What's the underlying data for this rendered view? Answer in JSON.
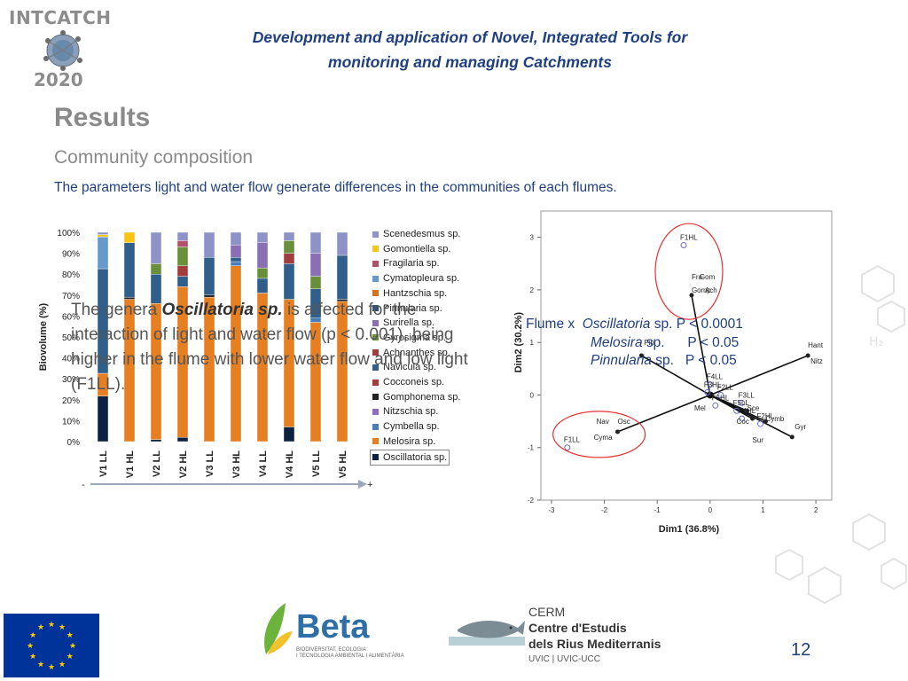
{
  "header": {
    "logo_top": "INTCATCH",
    "logo_bottom": "2020",
    "title_line1": "Development and application of Novel, Integrated Tools for",
    "title_line2": "monitoring and managing Catchments"
  },
  "section": {
    "title": "Results",
    "subtitle": "Community composition",
    "description": "The parameters light and water flow generate differences in the communities of each flumes."
  },
  "overlay": {
    "pre": "The genera ",
    "genus": "Oscillatoria sp.",
    "post": " is affected for the interaction of light and water flow (p < 0.001), being higher in the flume with lower water flow and low light (F1LL)."
  },
  "flume_stats": [
    {
      "label_prefix": "Flume x",
      "genus": "Oscillatoria",
      "suffix": "sp. P < 0.0001"
    },
    {
      "label_prefix": "",
      "genus": "Melosira",
      "suffix": "sp.      P < 0.05"
    },
    {
      "label_prefix": "",
      "genus": "Pinnularia",
      "suffix": "sp.   P < 0.05"
    }
  ],
  "footer": {
    "beta_label": "Beta",
    "beta_sub1": "BIODIVERSITAT, ECOLOGIA",
    "beta_sub2": "I TECNOLOGIA AMBIENTAL I ALIMENTÀRIA",
    "cerm1": "CERM",
    "cerm2": "Centre d'Estudis",
    "cerm3": "dels Rius Mediterranis",
    "cerm4": "UVIC | UVIC-UCC",
    "page": "12"
  },
  "chart_data": [
    {
      "type": "bar",
      "stacked": "percent",
      "ylabel": "Biovolume (%)",
      "yticks": [
        "0%",
        "10%",
        "20%",
        "30%",
        "40%",
        "50%",
        "60%",
        "70%",
        "80%",
        "90%",
        "100%"
      ],
      "ylim": [
        0,
        100
      ],
      "categories": [
        "V1 LL",
        "V1 HL",
        "V2 LL",
        "V2 HL",
        "V3 LL",
        "V3 HL",
        "V4 LL",
        "V4 HL",
        "V5 LL",
        "V5 HL"
      ],
      "axis_minus": "-",
      "axis_plus": "+",
      "series": [
        {
          "name": "Oscillatoria sp.",
          "color": "#0d2240",
          "values": [
            20,
            0,
            1,
            2,
            0,
            0,
            0,
            7,
            0,
            0
          ]
        },
        {
          "name": "Melosira sp.",
          "color": "#e67e22",
          "values": [
            10,
            68,
            65,
            72,
            69,
            84,
            71,
            61,
            57,
            67
          ]
        },
        {
          "name": "Cymbella sp.",
          "color": "#4a7ebb",
          "values": [
            0,
            0,
            0,
            0,
            0,
            2,
            0,
            0,
            2,
            0
          ]
        },
        {
          "name": "Nitzschia sp.",
          "color": "#8e6fbf",
          "values": [
            0,
            0,
            0,
            0,
            0,
            0,
            0,
            0,
            0,
            0
          ]
        },
        {
          "name": "Gomphonema sp.",
          "color": "#222222",
          "values": [
            0,
            1,
            0,
            0,
            1,
            0,
            0,
            0,
            0,
            1
          ]
        },
        {
          "name": "Cocconeis sp.",
          "color": "#a33c3c",
          "values": [
            0,
            0,
            0,
            0,
            0,
            0,
            0,
            0,
            0,
            0
          ]
        },
        {
          "name": "Navicula sp.",
          "color": "#2f5f8a",
          "values": [
            46,
            26,
            14,
            5,
            18,
            2,
            7,
            17,
            14,
            21
          ]
        },
        {
          "name": "Achnanthes sp.",
          "color": "#a33c3c",
          "values": [
            0,
            0,
            0,
            5,
            0,
            0,
            0,
            5,
            0,
            0
          ]
        },
        {
          "name": "Gyrosigma sp.",
          "color": "#6a8f3a",
          "values": [
            0,
            0,
            5,
            9,
            0,
            0,
            5,
            6,
            6,
            0
          ]
        },
        {
          "name": "Surirella sp.",
          "color": "#8a6fb5",
          "values": [
            0,
            0,
            0,
            0,
            0,
            6,
            12,
            0,
            11,
            0
          ]
        },
        {
          "name": "Pinnularia sp.",
          "color": "#2f4f7f",
          "values": [
            0,
            0,
            0,
            0,
            0,
            0,
            0,
            0,
            0,
            0
          ]
        },
        {
          "name": "Hantzschia sp.",
          "color": "#d4731d",
          "values": [
            0,
            0,
            0,
            0,
            0,
            0,
            0,
            0,
            0,
            0
          ]
        },
        {
          "name": "Cymatopleura sp.",
          "color": "#6699cc",
          "values": [
            14,
            0,
            0,
            0,
            0,
            0,
            0,
            0,
            0,
            0
          ]
        },
        {
          "name": "Fragilaria sp.",
          "color": "#b0506a",
          "values": [
            0,
            0,
            0,
            3,
            0,
            0,
            0,
            0,
            0,
            0
          ]
        },
        {
          "name": "Gomontiella sp.",
          "color": "#f5c518",
          "values": [
            1,
            5,
            0,
            0,
            0,
            0,
            0,
            0,
            0,
            0
          ]
        },
        {
          "name": "Scenedesmus sp.",
          "color": "#8d93c6",
          "values": [
            1,
            0,
            15,
            4,
            12,
            6,
            5,
            4,
            10,
            11
          ]
        }
      ]
    },
    {
      "type": "scatter",
      "subtype": "biplot",
      "xlabel": "Dim1 (36.8%)",
      "ylabel": "Dim2 (30.2%)",
      "xlim": [
        -3.2,
        2.3
      ],
      "ylim": [
        -2,
        3.5
      ],
      "xticks": [
        -3,
        -2,
        -1,
        0,
        1,
        2
      ],
      "yticks": [
        -2,
        -1,
        0,
        1,
        2,
        3
      ],
      "sites": [
        {
          "label": "F1HL",
          "x": -0.5,
          "y": 2.85
        },
        {
          "label": "F1LL",
          "x": -2.7,
          "y": -1.0
        },
        {
          "label": "F4LL",
          "x": 0,
          "y": 0.2
        },
        {
          "label": "F3HL",
          "x": -0.05,
          "y": 0.05
        },
        {
          "label": "F2LL",
          "x": 0.2,
          "y": 0
        },
        {
          "label": "F5HL",
          "x": 0.1,
          "y": -0.2
        },
        {
          "label": "F3LL",
          "x": 0.6,
          "y": -0.15
        },
        {
          "label": "F5LL",
          "x": 0.5,
          "y": -0.3
        },
        {
          "label": "F4HL",
          "x": 0.6,
          "y": -0.45
        },
        {
          "label": "F2HL",
          "x": 0.95,
          "y": -0.55
        }
      ],
      "species": [
        {
          "label": "Gomp",
          "x": -0.35,
          "y": 1.95
        },
        {
          "label": "Fra",
          "x": -0.35,
          "y": 2.2
        },
        {
          "label": "Gom",
          "x": -0.2,
          "y": 2.2
        },
        {
          "label": "Ach",
          "x": -0.1,
          "y": 1.95
        },
        {
          "label": "Pin",
          "x": -1.25,
          "y": 0.95
        },
        {
          "label": "Mel",
          "x": -0.3,
          "y": -0.3
        },
        {
          "label": "Hant",
          "x": 1.85,
          "y": 0.9
        },
        {
          "label": "Nitz",
          "x": 1.9,
          "y": 0.6
        },
        {
          "label": "Sce",
          "x": 0.7,
          "y": -0.3
        },
        {
          "label": "Cymb",
          "x": 1.05,
          "y": -0.5
        },
        {
          "label": "Coc",
          "x": 0.5,
          "y": -0.55
        },
        {
          "label": "Gyr",
          "x": 1.6,
          "y": -0.65
        },
        {
          "label": "Sur",
          "x": 0.8,
          "y": -0.9
        },
        {
          "label": "Nav",
          "x": -2.15,
          "y": -0.55
        },
        {
          "label": "Osc",
          "x": -1.75,
          "y": -0.55
        },
        {
          "label": "Cyma",
          "x": -2.2,
          "y": -0.85
        }
      ],
      "vectors": [
        {
          "label": "Gomp",
          "x": -0.35,
          "y": 1.9
        },
        {
          "label": "Pin",
          "x": -1.3,
          "y": 0.75
        },
        {
          "label": "Hant",
          "x": 1.85,
          "y": 0.75
        },
        {
          "label": "Osc",
          "x": -1.75,
          "y": -0.7
        },
        {
          "label": "Gyr",
          "x": 1.55,
          "y": -0.8
        },
        {
          "label": "Cymb",
          "x": 1.05,
          "y": -0.5
        },
        {
          "label": "Sce",
          "x": 0.7,
          "y": -0.3
        },
        {
          "label": "Sur",
          "x": 0.8,
          "y": -0.45
        }
      ]
    }
  ]
}
